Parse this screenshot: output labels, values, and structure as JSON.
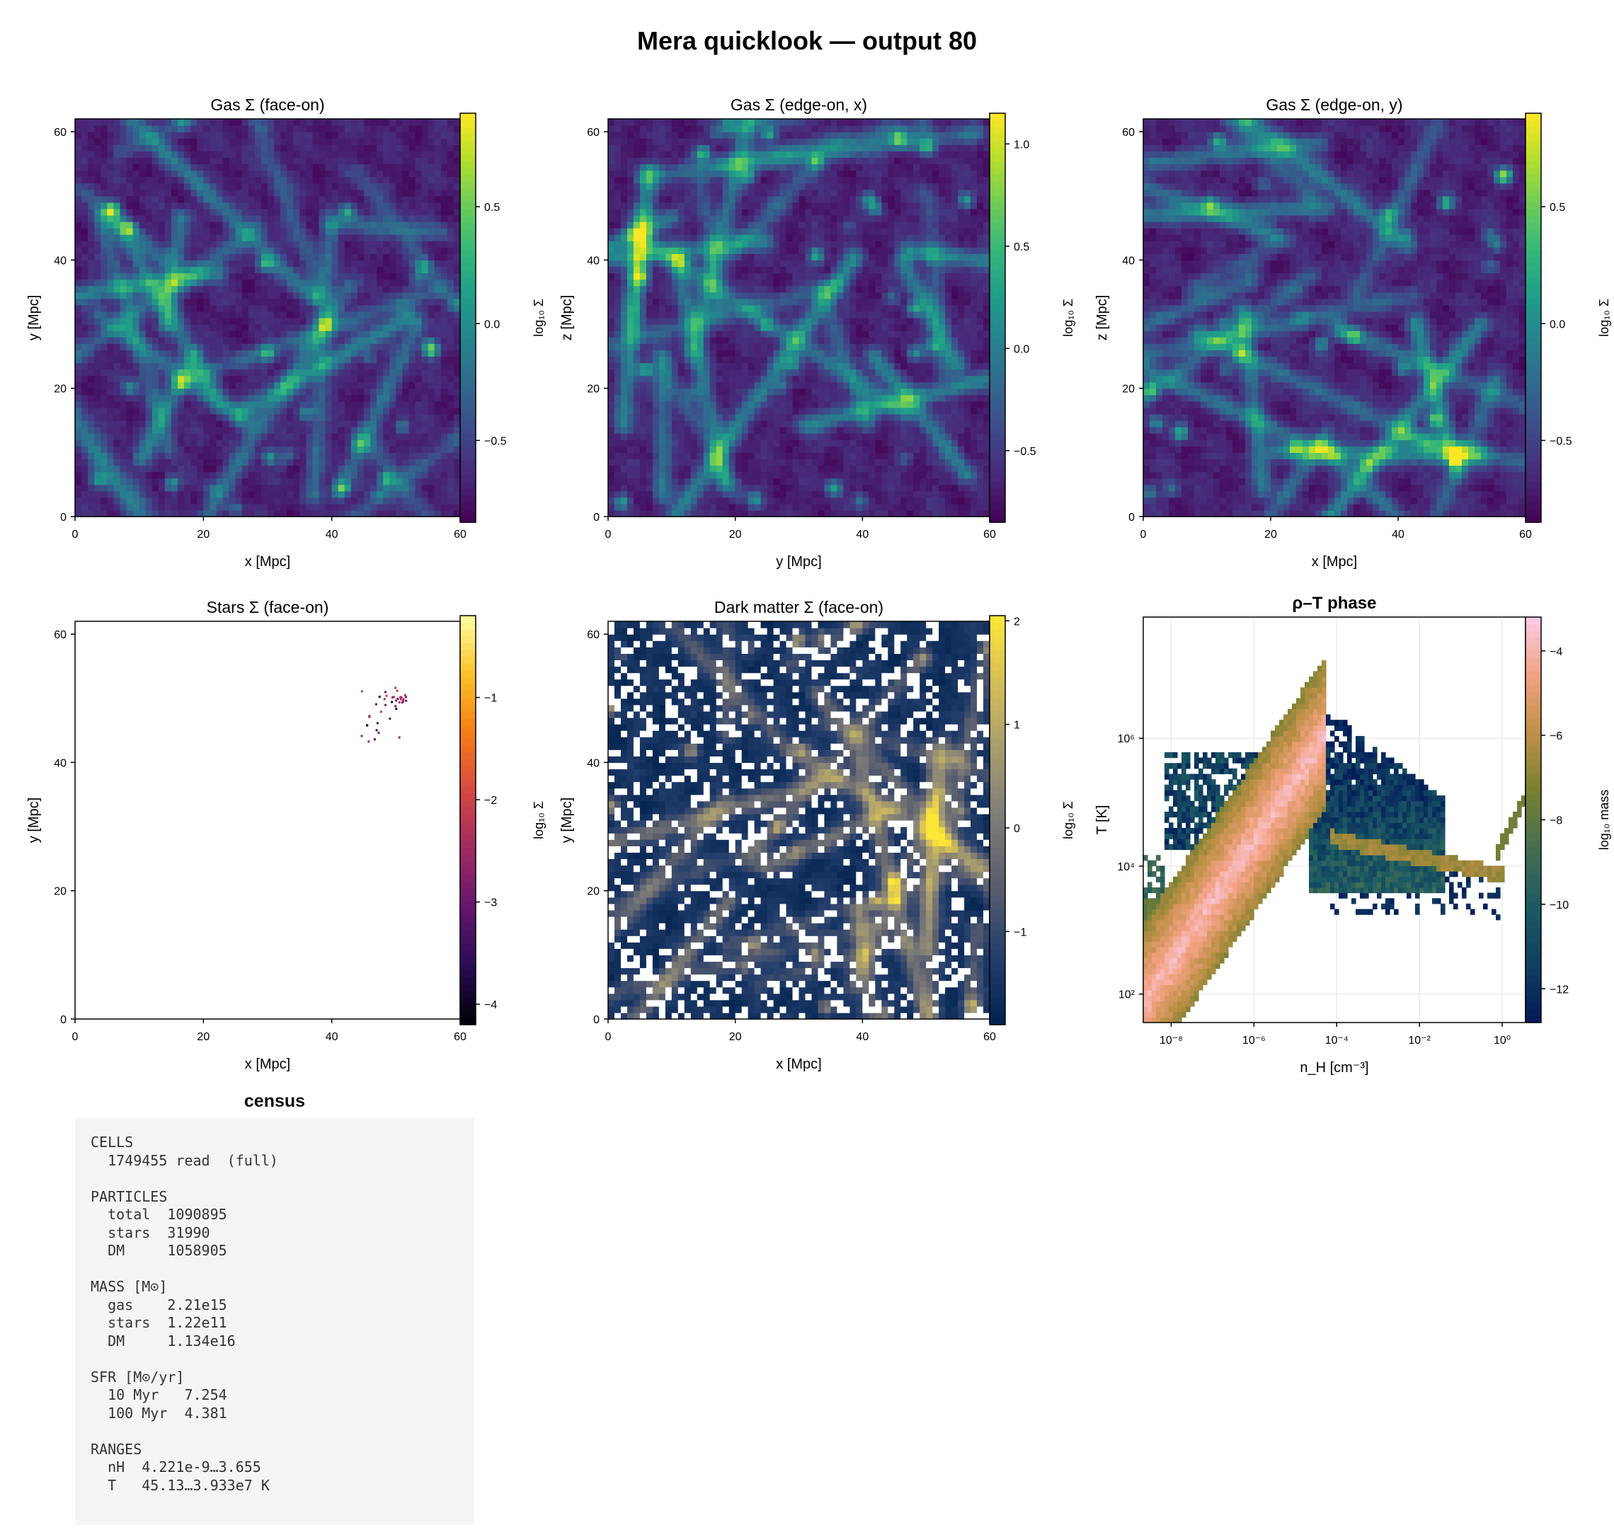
{
  "figure_title": "Mera quicklook — output 80",
  "panels": {
    "gas_face": {
      "title": "Gas Σ (face-on)",
      "xlabel": "x [Mpc]",
      "ylabel": "y [Mpc]",
      "cblabel": "log₁₀ Σ",
      "xticks": [
        "0",
        "20",
        "40",
        "60"
      ],
      "yticks": [
        "0",
        "20",
        "40",
        "60"
      ],
      "cbticks": [
        "−0.5",
        "0.0",
        "0.5"
      ]
    },
    "gas_edge_x": {
      "title": "Gas Σ (edge-on, x)",
      "xlabel": "y [Mpc]",
      "ylabel": "z [Mpc]",
      "cblabel": "log₁₀ Σ",
      "xticks": [
        "0",
        "20",
        "40",
        "60"
      ],
      "yticks": [
        "0",
        "20",
        "40",
        "60"
      ],
      "cbticks": [
        "−0.5",
        "0.0",
        "0.5",
        "1.0"
      ]
    },
    "gas_edge_y": {
      "title": "Gas Σ (edge-on, y)",
      "xlabel": "x [Mpc]",
      "ylabel": "z [Mpc]",
      "cblabel": "log₁₀ Σ",
      "xticks": [
        "0",
        "20",
        "40",
        "60"
      ],
      "yticks": [
        "0",
        "20",
        "40",
        "60"
      ],
      "cbticks": [
        "−0.5",
        "0.0",
        "0.5"
      ]
    },
    "stars_face": {
      "title": "Stars Σ (face-on)",
      "xlabel": "x [Mpc]",
      "ylabel": "y [Mpc]",
      "cblabel": "log₁₀ Σ",
      "xticks": [
        "0",
        "20",
        "40",
        "60"
      ],
      "yticks": [
        "0",
        "20",
        "40",
        "60"
      ],
      "cbticks": [
        "−4",
        "−3",
        "−2",
        "−1"
      ]
    },
    "dm_face": {
      "title": "Dark matter Σ (face-on)",
      "xlabel": "x [Mpc]",
      "ylabel": "y [Mpc]",
      "cblabel": "log₁₀ Σ",
      "xticks": [
        "0",
        "20",
        "40",
        "60"
      ],
      "yticks": [
        "0",
        "20",
        "40",
        "60"
      ],
      "cbticks": [
        "−1",
        "0",
        "1",
        "2"
      ]
    },
    "phase": {
      "title": "ρ–T phase",
      "xlabel": "n_H [cm⁻³]",
      "ylabel": "T [K]",
      "cblabel": "log₁₀ mass",
      "xticks": [
        "10⁻⁸",
        "10⁻⁶",
        "10⁻⁴",
        "10⁻²",
        "10⁰"
      ],
      "yticks": [
        "10²",
        "10⁴",
        "10⁶"
      ],
      "cbticks": [
        "−12",
        "−10",
        "−8",
        "−6",
        "−4"
      ]
    }
  },
  "chart_data": [
    {
      "type": "heatmap",
      "title": "Gas Σ (face-on)",
      "xlabel": "x [Mpc]",
      "ylabel": "y [Mpc]",
      "xlim": [
        0,
        60
      ],
      "ylim": [
        0,
        62
      ],
      "colorbar": {
        "label": "log₁₀ Σ",
        "range": [
          -0.85,
          0.9
        ],
        "colormap": "viridis"
      }
    },
    {
      "type": "heatmap",
      "title": "Gas Σ (edge-on, x)",
      "xlabel": "y [Mpc]",
      "ylabel": "z [Mpc]",
      "xlim": [
        0,
        60
      ],
      "ylim": [
        0,
        62
      ],
      "colorbar": {
        "label": "log₁₀ Σ",
        "range": [
          -0.85,
          1.15
        ],
        "colormap": "viridis"
      }
    },
    {
      "type": "heatmap",
      "title": "Gas Σ (edge-on, y)",
      "xlabel": "x [Mpc]",
      "ylabel": "z [Mpc]",
      "xlim": [
        0,
        60
      ],
      "ylim": [
        0,
        62
      ],
      "colorbar": {
        "label": "log₁₀ Σ",
        "range": [
          -0.85,
          0.9
        ],
        "colormap": "viridis"
      }
    },
    {
      "type": "heatmap",
      "title": "Stars Σ (face-on)",
      "xlabel": "x [Mpc]",
      "ylabel": "y [Mpc]",
      "xlim": [
        0,
        60
      ],
      "ylim": [
        0,
        62
      ],
      "colorbar": {
        "label": "log₁₀ Σ",
        "range": [
          -4.2,
          -0.2
        ],
        "colormap": "magma"
      },
      "star_region": {
        "x": [
          43.5,
          52
        ],
        "y": [
          42.5,
          52.5
        ]
      }
    },
    {
      "type": "heatmap",
      "title": "Dark matter Σ (face-on)",
      "xlabel": "x [Mpc]",
      "ylabel": "y [Mpc]",
      "xlim": [
        0,
        60
      ],
      "ylim": [
        0,
        62
      ],
      "colorbar": {
        "label": "log₁₀ Σ",
        "range": [
          -1.9,
          2.05
        ],
        "colormap": "cividis"
      }
    },
    {
      "type": "heatmap",
      "title": "ρ–T phase",
      "xlabel": "n_H [cm⁻³]",
      "ylabel": "T [K]",
      "xscale": "log",
      "yscale": "log",
      "xlim": [
        4.221e-09,
        3.655
      ],
      "ylim": [
        45.13,
        39330000.0
      ],
      "colorbar": {
        "label": "log₁₀ mass",
        "range": [
          -12.8,
          -3.2
        ],
        "colormap": "batlow"
      }
    }
  ],
  "census": {
    "title": "census",
    "text": "CELLS\n  1749455 read  (full)\n\nPARTICLES\n  total  1090895\n  stars  31990\n  DM     1058905\n\nMASS [M⊙]\n  gas    2.21e15\n  stars  1.22e11\n  DM     1.134e16\n\nSFR [M⊙/yr]\n  10 Myr   7.254\n  100 Myr  4.381\n\nRANGES\n  nH  4.221e-9…3.655\n  T   45.13…3.933e7 K"
  }
}
